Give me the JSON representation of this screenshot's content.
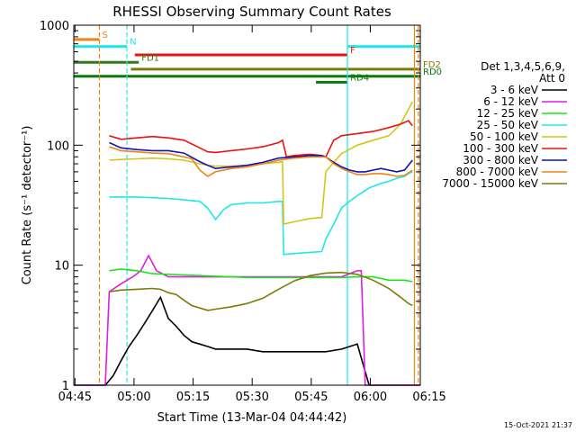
{
  "chart_data": {
    "type": "line",
    "title": "RHESSI Observing Summary Count Rates",
    "xlabel": "Start Time (13-Mar-04 04:44:42)",
    "ylabel": "Count Rate (s⁻¹ detector⁻¹)",
    "yscale": "log",
    "xlim": [
      0,
      88
    ],
    "ylim": [
      1,
      1000
    ],
    "x_unit": "minutes after 04:44:42",
    "xticks": [
      {
        "x": 0.3,
        "label": "04:45"
      },
      {
        "x": 15.3,
        "label": "05:00"
      },
      {
        "x": 30.3,
        "label": "05:15"
      },
      {
        "x": 45.3,
        "label": "05:30"
      },
      {
        "x": 60.3,
        "label": "05:45"
      },
      {
        "x": 75.3,
        "label": "06:00"
      },
      {
        "x": 90.3,
        "label": "06:15"
      }
    ],
    "yticks": [
      {
        "y": 1,
        "label": "1"
      },
      {
        "y": 10,
        "label": "10"
      },
      {
        "y": 100,
        "label": "100"
      },
      {
        "y": 1000,
        "label": "1000"
      }
    ],
    "legend_title": [
      "Det 1,3,4,5,6,9,",
      "Att 0"
    ],
    "series": [
      {
        "name": "3 - 6 keV",
        "color": "#000000",
        "points": [
          [
            0,
            1
          ],
          [
            8,
            1
          ],
          [
            10,
            1.2
          ],
          [
            12,
            1.6
          ],
          [
            14,
            2.1
          ],
          [
            16,
            2.6
          ],
          [
            18,
            3.3
          ],
          [
            20,
            4.2
          ],
          [
            22,
            5.4
          ],
          [
            24,
            3.6
          ],
          [
            26,
            3.1
          ],
          [
            28,
            2.6
          ],
          [
            30,
            2.3
          ],
          [
            32,
            2.2
          ],
          [
            34,
            2.1
          ],
          [
            36,
            2.0
          ],
          [
            40,
            2.0
          ],
          [
            44,
            2.0
          ],
          [
            48,
            1.9
          ],
          [
            52,
            1.9
          ],
          [
            56,
            1.9
          ],
          [
            60,
            1.9
          ],
          [
            64,
            1.9
          ],
          [
            68,
            2.0
          ],
          [
            72,
            2.2
          ],
          [
            75,
            1.0
          ],
          [
            88,
            1.0
          ]
        ]
      },
      {
        "name": "6 - 12 keV",
        "color": "#e01ee0",
        "points": [
          [
            0,
            1
          ],
          [
            8,
            1
          ],
          [
            9,
            6
          ],
          [
            12,
            7
          ],
          [
            15,
            8
          ],
          [
            17,
            9
          ],
          [
            19,
            12
          ],
          [
            21,
            9
          ],
          [
            24,
            8
          ],
          [
            28,
            8
          ],
          [
            32,
            8
          ],
          [
            36,
            8
          ],
          [
            40,
            8
          ],
          [
            44,
            8
          ],
          [
            48,
            8
          ],
          [
            52,
            8
          ],
          [
            56,
            8
          ],
          [
            60,
            8
          ],
          [
            64,
            8
          ],
          [
            68,
            8
          ],
          [
            72,
            9
          ],
          [
            73,
            9
          ],
          [
            74,
            1
          ],
          [
            88,
            1
          ]
        ]
      },
      {
        "name": "12 - 25 keV",
        "color": "#18e818",
        "points": [
          [
            9,
            9
          ],
          [
            12,
            9.3
          ],
          [
            16,
            9
          ],
          [
            20,
            8.5
          ],
          [
            24,
            8.4
          ],
          [
            28,
            8.3
          ],
          [
            32,
            8.2
          ],
          [
            36,
            8.1
          ],
          [
            40,
            8
          ],
          [
            44,
            7.9
          ],
          [
            48,
            7.9
          ],
          [
            52,
            7.9
          ],
          [
            56,
            7.9
          ],
          [
            60,
            7.9
          ],
          [
            64,
            7.9
          ],
          [
            68,
            7.9
          ],
          [
            72,
            8
          ],
          [
            76,
            8
          ],
          [
            80,
            7.5
          ],
          [
            84,
            7.5
          ],
          [
            86,
            7.3
          ]
        ]
      },
      {
        "name": "25 - 50 keV",
        "color": "#20e8e8",
        "points": [
          [
            9,
            37
          ],
          [
            12,
            37
          ],
          [
            16,
            37
          ],
          [
            20,
            36.5
          ],
          [
            24,
            36
          ],
          [
            28,
            35
          ],
          [
            32,
            34
          ],
          [
            34,
            30
          ],
          [
            36,
            24
          ],
          [
            38,
            29
          ],
          [
            40,
            32
          ],
          [
            44,
            33
          ],
          [
            48,
            33
          ],
          [
            52,
            34
          ],
          [
            53,
            34
          ],
          [
            53.3,
            12.3
          ],
          [
            56,
            12.5
          ],
          [
            60,
            12.8
          ],
          [
            63,
            13
          ],
          [
            64,
            16.5
          ],
          [
            66,
            22
          ],
          [
            68,
            30
          ],
          [
            70,
            34
          ],
          [
            72,
            38
          ],
          [
            75,
            44
          ],
          [
            78,
            48
          ],
          [
            80,
            50
          ],
          [
            82,
            53
          ],
          [
            84,
            55
          ],
          [
            85,
            58
          ],
          [
            86,
            60
          ]
        ]
      },
      {
        "name": "50 - 100 keV",
        "color": "#d2c51a",
        "points": [
          [
            9,
            75
          ],
          [
            12,
            76
          ],
          [
            16,
            77
          ],
          [
            20,
            78
          ],
          [
            24,
            77
          ],
          [
            28,
            75
          ],
          [
            32,
            70
          ],
          [
            34,
            68
          ],
          [
            36,
            67
          ],
          [
            40,
            67
          ],
          [
            44,
            68
          ],
          [
            48,
            70
          ],
          [
            52,
            72
          ],
          [
            53,
            73
          ],
          [
            53.3,
            22
          ],
          [
            56,
            23
          ],
          [
            60,
            24.5
          ],
          [
            63,
            25
          ],
          [
            64,
            60
          ],
          [
            66,
            72
          ],
          [
            68,
            85
          ],
          [
            72,
            100
          ],
          [
            76,
            110
          ],
          [
            80,
            120
          ],
          [
            83,
            150
          ],
          [
            85,
            200
          ],
          [
            86,
            230
          ]
        ]
      },
      {
        "name": "100 - 300 keV",
        "color": "#ee1010",
        "points": [
          [
            9,
            120
          ],
          [
            12,
            112
          ],
          [
            16,
            115
          ],
          [
            20,
            118
          ],
          [
            24,
            115
          ],
          [
            28,
            110
          ],
          [
            32,
            95
          ],
          [
            34,
            88
          ],
          [
            36,
            87
          ],
          [
            40,
            90
          ],
          [
            44,
            93
          ],
          [
            48,
            97
          ],
          [
            52,
            105
          ],
          [
            53,
            110
          ],
          [
            54,
            80
          ],
          [
            56,
            82
          ],
          [
            60,
            84
          ],
          [
            63,
            82
          ],
          [
            64,
            80
          ],
          [
            66,
            110
          ],
          [
            68,
            120
          ],
          [
            72,
            125
          ],
          [
            76,
            130
          ],
          [
            80,
            140
          ],
          [
            83,
            150
          ],
          [
            85,
            160
          ],
          [
            86,
            145
          ]
        ]
      },
      {
        "name": "300 - 800 keV",
        "color": "#1010b8",
        "points": [
          [
            9,
            105
          ],
          [
            12,
            95
          ],
          [
            16,
            92
          ],
          [
            20,
            90
          ],
          [
            24,
            90
          ],
          [
            28,
            86
          ],
          [
            32,
            73
          ],
          [
            34,
            68
          ],
          [
            36,
            64
          ],
          [
            40,
            66
          ],
          [
            44,
            68
          ],
          [
            48,
            72
          ],
          [
            52,
            78
          ],
          [
            56,
            80
          ],
          [
            60,
            82
          ],
          [
            63,
            82
          ],
          [
            64,
            80
          ],
          [
            66,
            72
          ],
          [
            68,
            66
          ],
          [
            70,
            62
          ],
          [
            72,
            60
          ],
          [
            74,
            60
          ],
          [
            76,
            62
          ],
          [
            78,
            64
          ],
          [
            80,
            62
          ],
          [
            82,
            60
          ],
          [
            84,
            62
          ],
          [
            86,
            75
          ]
        ]
      },
      {
        "name": "800 - 7000 keV",
        "color": "#f08510",
        "points": [
          [
            9,
            97
          ],
          [
            12,
            90
          ],
          [
            16,
            88
          ],
          [
            20,
            86
          ],
          [
            24,
            85
          ],
          [
            28,
            80
          ],
          [
            30,
            77
          ],
          [
            32,
            62
          ],
          [
            34,
            55
          ],
          [
            36,
            60
          ],
          [
            40,
            64
          ],
          [
            44,
            66
          ],
          [
            48,
            70
          ],
          [
            52,
            75
          ],
          [
            56,
            78
          ],
          [
            60,
            80
          ],
          [
            64,
            80
          ],
          [
            66,
            70
          ],
          [
            68,
            64
          ],
          [
            70,
            60
          ],
          [
            72,
            57
          ],
          [
            74,
            57
          ],
          [
            76,
            58
          ],
          [
            78,
            58
          ],
          [
            80,
            57
          ],
          [
            82,
            55
          ],
          [
            84,
            56
          ],
          [
            86,
            62
          ]
        ]
      },
      {
        "name": "7000 - 15000 keV",
        "color": "#7b7b08",
        "points": [
          [
            9,
            6
          ],
          [
            12,
            6.2
          ],
          [
            16,
            6.3
          ],
          [
            20,
            6.4
          ],
          [
            22,
            6.3
          ],
          [
            24,
            5.9
          ],
          [
            26,
            5.7
          ],
          [
            28,
            5.1
          ],
          [
            30,
            4.6
          ],
          [
            32,
            4.4
          ],
          [
            34,
            4.2
          ],
          [
            36,
            4.3
          ],
          [
            40,
            4.5
          ],
          [
            44,
            4.8
          ],
          [
            48,
            5.3
          ],
          [
            52,
            6.3
          ],
          [
            56,
            7.4
          ],
          [
            60,
            8.2
          ],
          [
            64,
            8.6
          ],
          [
            68,
            8.7
          ],
          [
            72,
            8.4
          ],
          [
            76,
            7.5
          ],
          [
            80,
            6.4
          ],
          [
            83,
            5.4
          ],
          [
            85,
            4.8
          ],
          [
            86,
            4.6
          ]
        ]
      }
    ],
    "flags": [
      {
        "label": "S",
        "color": "#f08510",
        "segments": [
          [
            0,
            6.5
          ]
        ],
        "value": 760
      },
      {
        "label": "N",
        "color": "#20e8e8",
        "segments": [
          [
            0,
            13.5
          ],
          [
            69.5,
            88
          ]
        ],
        "value": 665
      },
      {
        "label": "F",
        "color": "#ee1010",
        "segments": [
          [
            15.5,
            69.5
          ]
        ],
        "value": 565
      },
      {
        "label": "FD1",
        "color": "#2d7a1a",
        "segments": [
          [
            0,
            16.5
          ]
        ],
        "value": 490
      },
      {
        "label": "FD2",
        "color": "#7b7b08",
        "segments": [
          [
            14.5,
            88
          ]
        ],
        "value": 430
      },
      {
        "label": "RD0",
        "color": "#0a7a0a",
        "segments": [
          [
            0,
            88
          ]
        ],
        "value": 375
      },
      {
        "label": "RD4",
        "color": "#0a7a0a",
        "segments": [
          [
            61.5,
            69.5
          ]
        ],
        "value": 335
      }
    ],
    "vlines": [
      {
        "x": 6.5,
        "color": "#f08510",
        "dash": true
      },
      {
        "x": 13.5,
        "color": "#20e8e8",
        "dash": true
      },
      {
        "x": 69.5,
        "color": "#20e8e8",
        "dash": false
      },
      {
        "x": 86.5,
        "color": "#f08510",
        "dash": false
      },
      {
        "x": 87.5,
        "color": "#f08510",
        "dash": true
      }
    ]
  },
  "footer": {
    "timestamp": "15-Oct-2021 21:37"
  }
}
